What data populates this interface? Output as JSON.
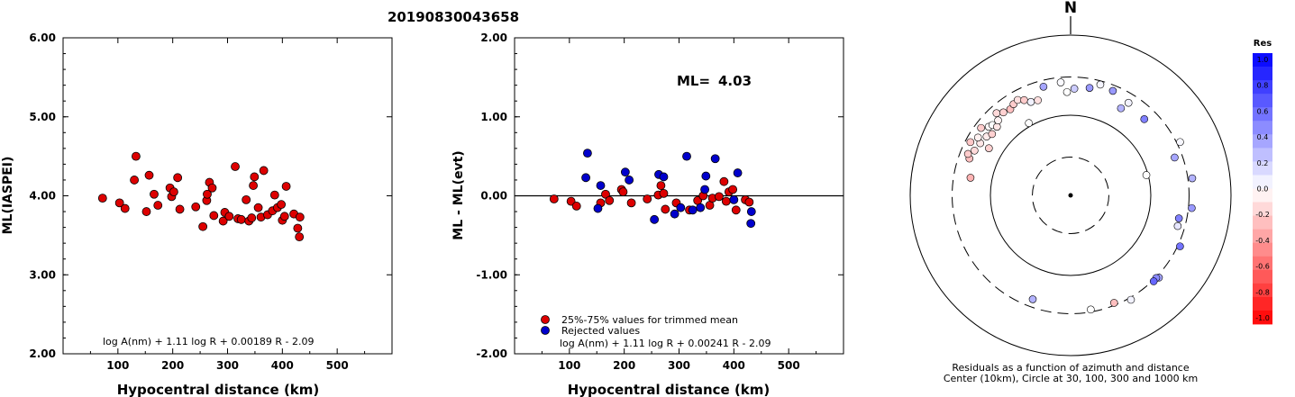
{
  "figure_title": "20190830043658",
  "chart_data": [
    {
      "type": "scatter",
      "id": "ml-vs-distance",
      "xlabel": "Hypocentral distance (km)",
      "ylabel": "ML(IASPEI)",
      "xlim": [
        0,
        600
      ],
      "ylim": [
        2.0,
        6.0
      ],
      "xticks": [
        "100",
        "200",
        "300",
        "400",
        "500"
      ],
      "yticks": [
        "2.00",
        "3.00",
        "4.00",
        "5.00",
        "6.00"
      ],
      "formula": "log A(nm) + 1.11 log R + 0.00189 R - 2.09",
      "point_color": "#dd0000",
      "points": [
        [
          72,
          3.97
        ],
        [
          103,
          3.91
        ],
        [
          113,
          3.84
        ],
        [
          130,
          4.2
        ],
        [
          133,
          4.5
        ],
        [
          152,
          3.8
        ],
        [
          157,
          4.26
        ],
        [
          166,
          4.02
        ],
        [
          173,
          3.88
        ],
        [
          195,
          4.1
        ],
        [
          198,
          3.99
        ],
        [
          202,
          4.05
        ],
        [
          209,
          4.23
        ],
        [
          213,
          3.83
        ],
        [
          242,
          3.86
        ],
        [
          255,
          3.61
        ],
        [
          262,
          3.94
        ],
        [
          263,
          4.02
        ],
        [
          267,
          4.17
        ],
        [
          272,
          4.1
        ],
        [
          275,
          3.75
        ],
        [
          292,
          3.68
        ],
        [
          295,
          3.79
        ],
        [
          303,
          3.74
        ],
        [
          314,
          4.37
        ],
        [
          319,
          3.71
        ],
        [
          325,
          3.7
        ],
        [
          334,
          3.95
        ],
        [
          339,
          3.68
        ],
        [
          344,
          3.72
        ],
        [
          347,
          4.13
        ],
        [
          349,
          4.24
        ],
        [
          356,
          3.85
        ],
        [
          361,
          3.73
        ],
        [
          366,
          4.32
        ],
        [
          373,
          3.76
        ],
        [
          382,
          3.81
        ],
        [
          386,
          4.01
        ],
        [
          391,
          3.85
        ],
        [
          398,
          3.89
        ],
        [
          400,
          3.69
        ],
        [
          404,
          3.74
        ],
        [
          407,
          4.12
        ],
        [
          421,
          3.77
        ],
        [
          428,
          3.59
        ],
        [
          431,
          3.48
        ],
        [
          432,
          3.73
        ]
      ]
    },
    {
      "type": "scatter",
      "id": "residual-vs-distance",
      "xlabel": "Hypocentral distance (km)",
      "ylabel": "ML - ML(evt)",
      "xlim": [
        0,
        600
      ],
      "ylim": [
        -2.0,
        2.0
      ],
      "xticks": [
        "100",
        "200",
        "300",
        "400",
        "500"
      ],
      "yticks": [
        "-2.00",
        "-1.00",
        "0.00",
        "1.00",
        "2.00"
      ],
      "annotation_label": "ML=",
      "annotation_value": "4.03",
      "formula": "log A(nm) + 1.11 log R + 0.00241 R - 2.09",
      "legend": [
        {
          "label": "25%-75% values for trimmed mean",
          "color": "#dd0000"
        },
        {
          "label": "Rejected values",
          "color": "#0000cc"
        }
      ],
      "series": [
        {
          "name": "25%-75% values for trimmed mean",
          "color": "#dd0000",
          "points": [
            [
              72,
              -0.04
            ],
            [
              103,
              -0.07
            ],
            [
              113,
              -0.13
            ],
            [
              157,
              -0.09
            ],
            [
              166,
              0.02
            ],
            [
              173,
              -0.06
            ],
            [
              195,
              0.08
            ],
            [
              198,
              0.05
            ],
            [
              213,
              -0.09
            ],
            [
              242,
              -0.04
            ],
            [
              262,
              0.01
            ],
            [
              267,
              0.13
            ],
            [
              272,
              0.03
            ],
            [
              275,
              -0.17
            ],
            [
              295,
              -0.09
            ],
            [
              319,
              -0.18
            ],
            [
              334,
              -0.06
            ],
            [
              344,
              0.0
            ],
            [
              356,
              -0.12
            ],
            [
              361,
              -0.03
            ],
            [
              373,
              -0.01
            ],
            [
              382,
              0.18
            ],
            [
              386,
              -0.07
            ],
            [
              391,
              0.05
            ],
            [
              398,
              0.08
            ],
            [
              404,
              -0.18
            ],
            [
              421,
              -0.05
            ],
            [
              428,
              -0.08
            ]
          ]
        },
        {
          "name": "Rejected values",
          "color": "#0000cc",
          "points": [
            [
              130,
              0.23
            ],
            [
              133,
              0.54
            ],
            [
              152,
              -0.16
            ],
            [
              157,
              0.13
            ],
            [
              202,
              0.3
            ],
            [
              209,
              0.2
            ],
            [
              255,
              -0.3
            ],
            [
              263,
              0.27
            ],
            [
              272,
              0.24
            ],
            [
              292,
              -0.23
            ],
            [
              303,
              -0.15
            ],
            [
              314,
              0.5
            ],
            [
              325,
              -0.18
            ],
            [
              339,
              -0.15
            ],
            [
              347,
              0.08
            ],
            [
              349,
              0.25
            ],
            [
              366,
              0.47
            ],
            [
              400,
              -0.05
            ],
            [
              407,
              0.29
            ],
            [
              431,
              -0.35
            ],
            [
              432,
              -0.2
            ]
          ]
        }
      ]
    },
    {
      "type": "scatter",
      "id": "azimuth-residual-polar",
      "north_label": "N",
      "caption_line1": "Residuals as a function of azimuth and distance",
      "caption_line2": "Center (10km), Circle at 30, 100, 300 and 1000 km",
      "rings_km": [
        30,
        100,
        300,
        1000
      ],
      "points_az_dist_res": [
        [
          290,
          220,
          -0.25
        ],
        [
          292,
          240,
          -0.2
        ],
        [
          295,
          210,
          -0.15
        ],
        [
          298,
          260,
          -0.22
        ],
        [
          300,
          200,
          -0.1
        ],
        [
          302,
          230,
          -0.05
        ],
        [
          305,
          190,
          -0.08
        ],
        [
          307,
          250,
          -0.2
        ],
        [
          308,
          175,
          -0.18
        ],
        [
          310,
          215,
          -0.02
        ],
        [
          312,
          205,
          0.0
        ],
        [
          313,
          180,
          -0.1
        ],
        [
          316,
          200,
          -0.05
        ],
        [
          318,
          240,
          -0.15
        ],
        [
          321,
          215,
          -0.18
        ],
        [
          325,
          205,
          -0.25
        ],
        [
          328,
          220,
          -0.2
        ],
        [
          331,
          230,
          -0.12
        ],
        [
          334,
          210,
          -0.2
        ],
        [
          337,
          185,
          0.05
        ],
        [
          280,
          185,
          -0.3
        ],
        [
          300,
          150,
          -0.18
        ],
        [
          330,
          110,
          0.0
        ],
        [
          341,
          180,
          -0.12
        ],
        [
          346,
          250,
          0.35
        ],
        [
          355,
          260,
          0.02
        ],
        [
          358,
          195,
          0.0
        ],
        [
          2,
          215,
          0.2
        ],
        [
          10,
          230,
          0.4
        ],
        [
          15,
          270,
          0.04
        ],
        [
          22,
          255,
          0.4
        ],
        [
          30,
          180,
          0.3
        ],
        [
          32,
          230,
          0.05
        ],
        [
          44,
          210,
          0.5
        ],
        [
          64,
          330,
          0.03
        ],
        [
          70,
          240,
          0.35
        ],
        [
          75,
          95,
          0.0
        ],
        [
          82,
          340,
          0.3
        ],
        [
          96,
          330,
          0.4
        ],
        [
          102,
          240,
          0.5
        ],
        [
          106,
          245,
          0.1
        ],
        [
          115,
          320,
          0.55
        ],
        [
          133,
          320,
          0.35
        ],
        [
          134,
          305,
          0.45
        ],
        [
          136,
          310,
          0.6
        ],
        [
          150,
          320,
          0.05
        ],
        [
          158,
          280,
          -0.25
        ],
        [
          170,
          280,
          0.0
        ],
        [
          200,
          240,
          0.3
        ]
      ]
    },
    {
      "type": "heatmap",
      "id": "residual-colorbar",
      "title": "Res",
      "labels": [
        "1.0",
        "0.8",
        "0.6",
        "0.4",
        "0.2",
        "0.0",
        "-0.2",
        "-0.4",
        "-0.6",
        "-0.8",
        "-1.0"
      ],
      "range": [
        -1.0,
        1.0
      ],
      "colors": {
        "negative": "#ff0000",
        "zero": "#ffffff",
        "positive": "#0000ff"
      }
    }
  ]
}
